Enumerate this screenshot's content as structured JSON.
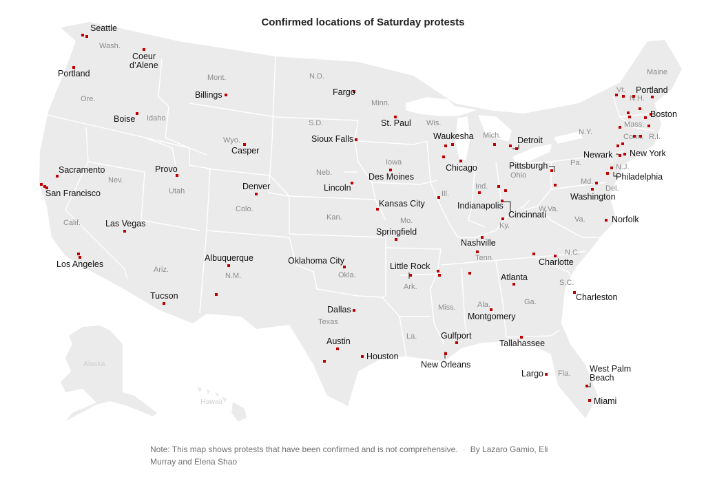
{
  "title": "Confirmed locations of Saturday protests",
  "colors": {
    "land": "#eaeaea",
    "border": "#ffffff",
    "marker": "#c00000",
    "water": "#ffffff"
  },
  "footer": {
    "note": "Note: This map shows protests that have been confirmed and is not comprehensive.",
    "byline": "By Lazaro Gamio, Eli Murray and Elena Shao"
  },
  "cities": [
    "Seattle",
    "Coeur d’Alene",
    "Portland",
    "Billings",
    "Fargo",
    "Boise",
    "St. Paul",
    "Waukesha",
    "Detroit",
    "Casper",
    "Sioux Falls",
    "Sacramento",
    "Provo",
    "Des Moines",
    "Chicago",
    "Pittsburgh",
    "Newark",
    "New York",
    "Philadelphia",
    "San Francisco",
    "Denver",
    "Lincoln",
    "Kansas City",
    "Indianapolis",
    "Cincinnati",
    "Washington",
    "Las Vegas",
    "Springfield",
    "Norfolk",
    "Nashville",
    "Los Angeles",
    "Albuquerque",
    "Oklahoma City",
    "Little Rock",
    "Charlotte",
    "Atlanta",
    "Tucson",
    "Charleston",
    "Dallas",
    "Montgomery",
    "Austin",
    "Gulfport",
    "Tallahassee",
    "Houston",
    "New Orleans",
    "Largo",
    "West Palm Beach",
    "Miami",
    "Portland",
    "Boston"
  ],
  "states": [
    "Wash.",
    "Ore.",
    "Idaho",
    "Mont.",
    "N.D.",
    "Minn.",
    "Wis.",
    "Mich.",
    "S.D.",
    "Wyo.",
    "Iowa",
    "Neb.",
    "Nev.",
    "Utah",
    "Ill.",
    "Ind.",
    "Ohio",
    "Pa.",
    "N.Y.",
    "Maine",
    "Vt.",
    "N.H.",
    "Mass.",
    "Conn.",
    "R.I.",
    "N.J.",
    "Md.",
    "Del.",
    "Colo.",
    "Kan.",
    "Mo.",
    "Calif.",
    "Ky.",
    "W.Va.",
    "Va.",
    "Tenn.",
    "N.C.",
    "Ariz.",
    "N.M.",
    "Okla.",
    "Ark.",
    "S.C.",
    "Miss.",
    "Ala.",
    "Ga.",
    "Texas",
    "La.",
    "Fla.",
    "Alaska",
    "Hawaii"
  ]
}
